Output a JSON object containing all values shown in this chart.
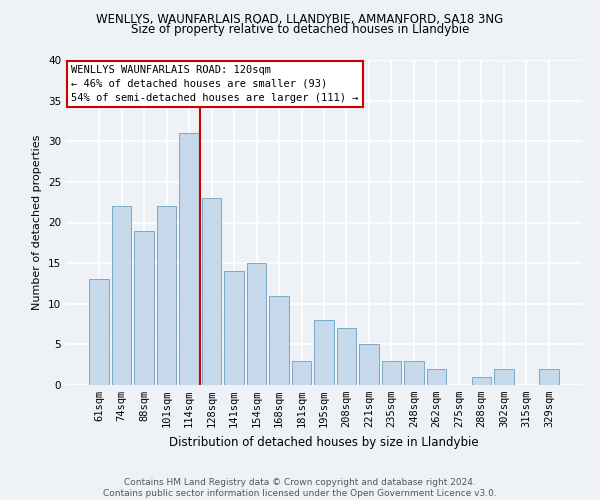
{
  "title1": "WENLLYS, WAUNFARLAIS ROAD, LLANDYBIE, AMMANFORD, SA18 3NG",
  "title2": "Size of property relative to detached houses in Llandybie",
  "xlabel": "Distribution of detached houses by size in Llandybie",
  "ylabel": "Number of detached properties",
  "categories": [
    "61sqm",
    "74sqm",
    "88sqm",
    "101sqm",
    "114sqm",
    "128sqm",
    "141sqm",
    "154sqm",
    "168sqm",
    "181sqm",
    "195sqm",
    "208sqm",
    "221sqm",
    "235sqm",
    "248sqm",
    "262sqm",
    "275sqm",
    "288sqm",
    "302sqm",
    "315sqm",
    "329sqm"
  ],
  "values": [
    13,
    22,
    19,
    22,
    31,
    23,
    14,
    15,
    11,
    3,
    8,
    7,
    5,
    3,
    3,
    2,
    0,
    1,
    2,
    0,
    2
  ],
  "bar_color": "#c5d9ea",
  "bar_edge_color": "#7aaac8",
  "bar_width": 0.85,
  "ylim": [
    0,
    40
  ],
  "yticks": [
    0,
    5,
    10,
    15,
    20,
    25,
    30,
    35,
    40
  ],
  "marker_index": 4,
  "marker_label": "WENLLYS WAUNFARLAIS ROAD: 120sqm",
  "annotation_line1": "← 46% of detached houses are smaller (93)",
  "annotation_line2": "54% of semi-detached houses are larger (111) →",
  "footer1": "Contains HM Land Registry data © Crown copyright and database right 2024.",
  "footer2": "Contains public sector information licensed under the Open Government Licence v3.0.",
  "background_color": "#eef2f7",
  "grid_color": "#ffffff",
  "annotation_box_color": "#ffffff",
  "annotation_box_edge": "#cc0000",
  "marker_line_color": "#cc0000",
  "title1_fontsize": 8.5,
  "title2_fontsize": 8.5,
  "xlabel_fontsize": 8.5,
  "ylabel_fontsize": 8.0,
  "tick_fontsize": 7.5,
  "footer_fontsize": 6.5,
  "annot_fontsize": 7.5
}
